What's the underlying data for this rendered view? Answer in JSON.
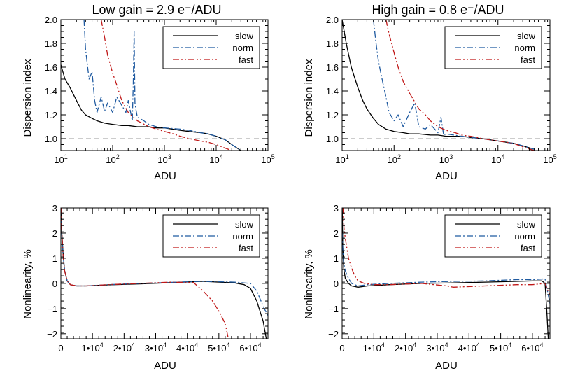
{
  "colors": {
    "slow": "#000000",
    "norm": "#1f5aa0",
    "fast": "#c01818",
    "reference": "#9a9a9a"
  },
  "chart_data": [
    {
      "type": "line",
      "title": "Low gain = 2.9 e⁻/ADU",
      "xlabel": "ADU",
      "ylabel": "Dispersion index",
      "xscale": "log",
      "xlim": [
        10,
        100000
      ],
      "ylim": [
        0.9,
        2.0
      ],
      "xticks": [
        {
          "v": 10,
          "base": "10",
          "exp": "1"
        },
        {
          "v": 100,
          "base": "10",
          "exp": "2"
        },
        {
          "v": 1000,
          "base": "10",
          "exp": "3"
        },
        {
          "v": 10000,
          "base": "10",
          "exp": "4"
        },
        {
          "v": 100000,
          "base": "10",
          "exp": "5"
        }
      ],
      "yticks": [
        {
          "v": 1.0,
          "label": "1.0"
        },
        {
          "v": 1.2,
          "label": "1.2"
        },
        {
          "v": 1.4,
          "label": "1.4"
        },
        {
          "v": 1.6,
          "label": "1.6"
        },
        {
          "v": 1.8,
          "label": "1.8"
        },
        {
          "v": 2.0,
          "label": "2.0"
        }
      ],
      "reference_line": 1.0,
      "legend": "top-right",
      "series": [
        {
          "name": "slow",
          "style": "solid",
          "x": [
            10,
            12,
            15,
            20,
            25,
            30,
            40,
            50,
            70,
            100,
            150,
            200,
            300,
            500,
            700,
            1000,
            2000,
            3000,
            5000,
            7000,
            10000,
            15000,
            20000,
            30000
          ],
          "y": [
            1.62,
            1.5,
            1.43,
            1.32,
            1.24,
            1.2,
            1.17,
            1.15,
            1.13,
            1.12,
            1.11,
            1.11,
            1.1,
            1.1,
            1.09,
            1.09,
            1.07,
            1.06,
            1.05,
            1.04,
            1.02,
            0.99,
            0.95,
            0.9
          ]
        },
        {
          "name": "norm",
          "style": "dashdot",
          "x": [
            28,
            30,
            35,
            40,
            45,
            50,
            60,
            70,
            80,
            100,
            120,
            150,
            180,
            200,
            240,
            250,
            260,
            270,
            280,
            300,
            400,
            500,
            700,
            1000,
            2000,
            3000,
            5000,
            7000,
            10000,
            15000,
            20000,
            30000
          ],
          "y": [
            2.0,
            1.75,
            1.5,
            1.56,
            1.32,
            1.22,
            1.35,
            1.23,
            1.3,
            1.22,
            1.35,
            1.28,
            1.22,
            1.32,
            1.15,
            1.45,
            1.9,
            1.3,
            1.25,
            1.18,
            1.15,
            1.12,
            1.1,
            1.09,
            1.08,
            1.07,
            1.05,
            1.04,
            1.02,
            0.99,
            0.95,
            0.9
          ]
        },
        {
          "name": "fast",
          "style": "dashdotdot",
          "x": [
            60,
            70,
            80,
            100,
            120,
            150,
            200,
            300,
            500,
            700,
            1000,
            1500,
            2000,
            3000,
            5000,
            7000,
            10000,
            15000,
            20000
          ],
          "y": [
            2.0,
            1.85,
            1.7,
            1.55,
            1.45,
            1.32,
            1.22,
            1.15,
            1.1,
            1.08,
            1.06,
            1.04,
            1.02,
            1.0,
            0.98,
            0.97,
            0.95,
            0.92,
            0.9
          ]
        }
      ]
    },
    {
      "type": "line",
      "title": "High gain = 0.8 e⁻/ADU",
      "xlabel": "ADU",
      "ylabel": "Dispersion index",
      "xscale": "log",
      "xlim": [
        10,
        100000
      ],
      "ylim": [
        0.9,
        2.0
      ],
      "xticks": [
        {
          "v": 10,
          "base": "10",
          "exp": "1"
        },
        {
          "v": 100,
          "base": "10",
          "exp": "2"
        },
        {
          "v": 1000,
          "base": "10",
          "exp": "3"
        },
        {
          "v": 10000,
          "base": "10",
          "exp": "4"
        },
        {
          "v": 100000,
          "base": "10",
          "exp": "5"
        }
      ],
      "yticks": [
        {
          "v": 1.0,
          "label": "1.0"
        },
        {
          "v": 1.2,
          "label": "1.2"
        },
        {
          "v": 1.4,
          "label": "1.4"
        },
        {
          "v": 1.6,
          "label": "1.6"
        },
        {
          "v": 1.8,
          "label": "1.8"
        },
        {
          "v": 2.0,
          "label": "2.0"
        }
      ],
      "reference_line": 1.0,
      "legend": "top-right",
      "series": [
        {
          "name": "slow",
          "style": "solid",
          "x": [
            10,
            12,
            15,
            20,
            25,
            30,
            40,
            50,
            70,
            100,
            150,
            200,
            300,
            500,
            700,
            1000,
            2000,
            3000,
            5000,
            10000,
            20000,
            30000,
            50000
          ],
          "y": [
            2.0,
            1.8,
            1.6,
            1.43,
            1.32,
            1.25,
            1.17,
            1.12,
            1.08,
            1.06,
            1.05,
            1.04,
            1.04,
            1.03,
            1.03,
            1.02,
            1.02,
            1.01,
            1.0,
            0.98,
            0.96,
            0.94,
            0.91
          ]
        },
        {
          "name": "norm",
          "style": "dashdot",
          "x": [
            40,
            45,
            50,
            60,
            70,
            80,
            100,
            120,
            150,
            200,
            250,
            300,
            400,
            500,
            700,
            800,
            900,
            1000,
            2000,
            3000,
            5000,
            10000,
            20000,
            30000,
            50000
          ],
          "y": [
            2.0,
            1.8,
            1.65,
            1.48,
            1.35,
            1.22,
            1.15,
            1.2,
            1.1,
            1.22,
            1.3,
            1.1,
            1.08,
            1.12,
            1.05,
            1.18,
            1.03,
            1.04,
            1.02,
            1.01,
            1.0,
            0.98,
            0.96,
            0.94,
            0.91
          ]
        },
        {
          "name": "fast",
          "style": "dashdotdot",
          "x": [
            70,
            80,
            100,
            120,
            150,
            200,
            300,
            400,
            500,
            700,
            1000,
            1500,
            2000,
            3000,
            5000,
            10000,
            20000,
            30000,
            50000
          ],
          "y": [
            2.0,
            1.88,
            1.72,
            1.6,
            1.48,
            1.38,
            1.25,
            1.2,
            1.15,
            1.1,
            1.07,
            1.05,
            1.03,
            1.02,
            1.0,
            0.98,
            0.96,
            0.93,
            0.9
          ]
        }
      ]
    },
    {
      "type": "line",
      "title": "",
      "xlabel": "ADU",
      "ylabel": "Nonlinearity, %",
      "xscale": "linear",
      "xlim": [
        0,
        65535
      ],
      "ylim": [
        -2.2,
        3.0
      ],
      "xticks": [
        {
          "v": 0,
          "label": "0"
        },
        {
          "v": 10000,
          "base": "1•10",
          "exp": "4"
        },
        {
          "v": 20000,
          "base": "2•10",
          "exp": "4"
        },
        {
          "v": 30000,
          "base": "3•10",
          "exp": "4"
        },
        {
          "v": 40000,
          "base": "4•10",
          "exp": "4"
        },
        {
          "v": 50000,
          "base": "5•10",
          "exp": "4"
        },
        {
          "v": 60000,
          "base": "6•10",
          "exp": "4"
        }
      ],
      "yticks": [
        {
          "v": -2,
          "label": "−2"
        },
        {
          "v": -1,
          "label": "−1"
        },
        {
          "v": 0,
          "label": "0"
        },
        {
          "v": 1,
          "label": "1"
        },
        {
          "v": 2,
          "label": "2"
        },
        {
          "v": 3,
          "label": "3"
        }
      ],
      "legend": "top-right",
      "series": [
        {
          "name": "slow",
          "style": "solid",
          "x": [
            100,
            300,
            700,
            1200,
            2000,
            3000,
            5000,
            8000,
            15000,
            25000,
            35000,
            45000,
            55000,
            58000,
            60000,
            62000,
            64000,
            65000
          ],
          "y": [
            3.0,
            2.0,
            1.2,
            0.5,
            0.1,
            -0.05,
            -0.1,
            -0.1,
            -0.06,
            -0.02,
            0.03,
            0.08,
            0.02,
            -0.05,
            -0.2,
            -0.7,
            -1.5,
            -2.2
          ]
        },
        {
          "name": "norm",
          "style": "dashdot",
          "x": [
            100,
            300,
            700,
            1200,
            2000,
            3000,
            5000,
            8000,
            15000,
            25000,
            35000,
            45000,
            55000,
            60000,
            62000,
            64000,
            65535
          ],
          "y": [
            3.0,
            1.9,
            1.1,
            0.5,
            0.1,
            -0.05,
            -0.1,
            -0.1,
            -0.05,
            0.0,
            0.04,
            0.08,
            0.05,
            0.0,
            -0.3,
            -0.9,
            -1.3
          ]
        },
        {
          "name": "fast",
          "style": "dashdotdot",
          "x": [
            100,
            300,
            700,
            1200,
            2000,
            3000,
            5000,
            8000,
            15000,
            25000,
            35000,
            42000,
            45000,
            48000,
            50000,
            52000,
            53000
          ],
          "y": [
            3.0,
            2.0,
            1.1,
            0.5,
            0.1,
            -0.05,
            -0.1,
            -0.1,
            -0.05,
            0.0,
            0.05,
            0.03,
            -0.3,
            -0.7,
            -1.1,
            -1.6,
            -2.2
          ]
        }
      ]
    },
    {
      "type": "line",
      "title": "",
      "xlabel": "ADU",
      "ylabel": "Nonlinearity, %",
      "xscale": "linear",
      "xlim": [
        0,
        65535
      ],
      "ylim": [
        -2.2,
        3.0
      ],
      "xticks": [
        {
          "v": 0,
          "label": "0"
        },
        {
          "v": 10000,
          "base": "1•10",
          "exp": "4"
        },
        {
          "v": 20000,
          "base": "2•10",
          "exp": "4"
        },
        {
          "v": 30000,
          "base": "3•10",
          "exp": "4"
        },
        {
          "v": 40000,
          "base": "4•10",
          "exp": "4"
        },
        {
          "v": 50000,
          "base": "5•10",
          "exp": "4"
        },
        {
          "v": 60000,
          "base": "6•10",
          "exp": "4"
        }
      ],
      "yticks": [
        {
          "v": -2,
          "label": "−2"
        },
        {
          "v": -1,
          "label": "−1"
        },
        {
          "v": 0,
          "label": "0"
        },
        {
          "v": 1,
          "label": "1"
        },
        {
          "v": 2,
          "label": "2"
        },
        {
          "v": 3,
          "label": "3"
        }
      ],
      "legend": "top-right",
      "series": [
        {
          "name": "slow",
          "style": "solid",
          "x": [
            50,
            200,
            500,
            1000,
            2000,
            3000,
            5000,
            8000,
            15000,
            25000,
            35000,
            45000,
            55000,
            60000,
            63000,
            64000,
            64500,
            65000
          ],
          "y": [
            3.0,
            1.5,
            0.6,
            0.2,
            0.0,
            -0.1,
            -0.15,
            -0.1,
            -0.05,
            0.0,
            0.02,
            0.05,
            0.08,
            0.1,
            0.1,
            0.0,
            -1.0,
            -2.2
          ]
        },
        {
          "name": "norm",
          "style": "dashdot",
          "x": [
            50,
            200,
            500,
            1000,
            2000,
            3000,
            5000,
            8000,
            15000,
            25000,
            35000,
            45000,
            55000,
            60000,
            64000,
            65535
          ],
          "y": [
            2.0,
            1.4,
            0.8,
            0.5,
            0.2,
            0.0,
            -0.1,
            -0.05,
            0.0,
            0.05,
            0.08,
            0.1,
            0.15,
            0.15,
            0.18,
            -0.8
          ]
        },
        {
          "name": "fast",
          "style": "dashdotdot",
          "x": [
            300,
            600,
            1000,
            1500,
            2000,
            3000,
            4000,
            5000,
            7000,
            10000,
            15000,
            25000,
            33000,
            35000,
            45000,
            55000,
            60000,
            64000,
            65535
          ],
          "y": [
            3.0,
            2.2,
            1.8,
            1.4,
            1.0,
            0.6,
            0.3,
            0.1,
            0.0,
            -0.05,
            -0.05,
            0.0,
            -0.1,
            -0.15,
            -0.1,
            -0.05,
            -0.05,
            0.0,
            -0.5
          ]
        }
      ]
    }
  ]
}
